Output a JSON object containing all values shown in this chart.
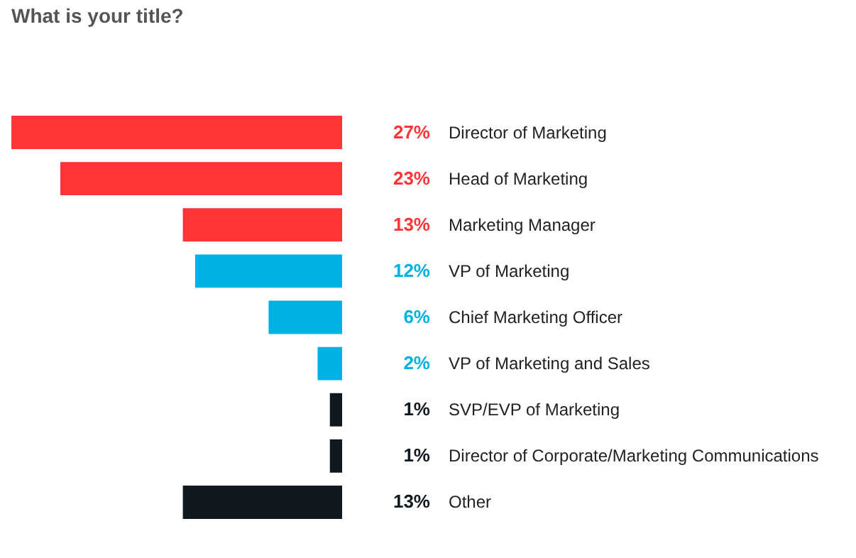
{
  "chart_data": {
    "type": "bar",
    "orientation": "horizontal",
    "title": "What is your title?",
    "categories": [
      "Director of Marketing",
      "Head of Marketing",
      "Marketing Manager",
      "VP of Marketing",
      "Chief Marketing Officer",
      "VP of Marketing and Sales",
      "SVP/EVP of Marketing",
      "Director of Corporate/Marketing Communications",
      "Other"
    ],
    "values": [
      27,
      23,
      13,
      12,
      6,
      2,
      1,
      1,
      13
    ],
    "colors": [
      "#ff3538",
      "#ff3538",
      "#ff3538",
      "#00b1e6",
      "#00b1e6",
      "#00b1e6",
      "#111920",
      "#111920",
      "#111920"
    ],
    "value_labels": [
      "27%",
      "23%",
      "13%",
      "12%",
      "6%",
      "2%",
      "1%",
      "1%",
      "13%"
    ],
    "tick_labels": false,
    "grid": false,
    "legend": false
  }
}
